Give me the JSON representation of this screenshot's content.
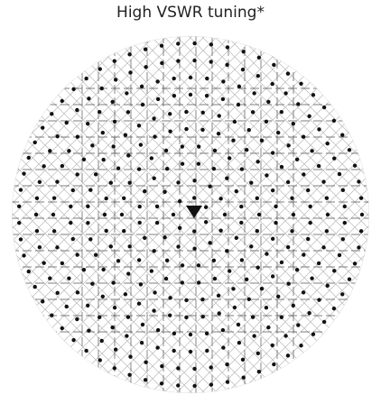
{
  "title": "High VSWR tuning*"
}
